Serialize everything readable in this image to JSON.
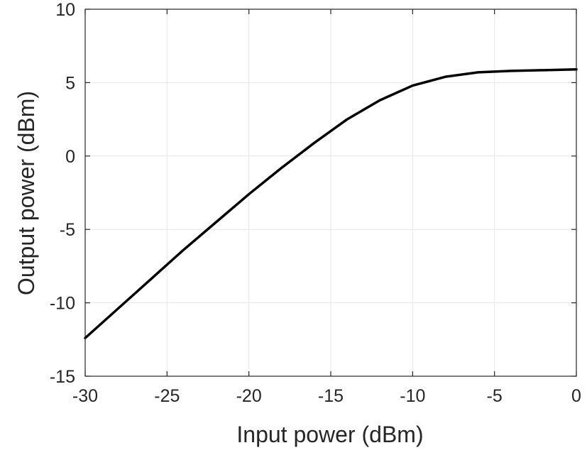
{
  "chart_data": {
    "type": "line",
    "title": "",
    "xlabel": "Input power (dBm)",
    "ylabel": "Output power (dBm)",
    "xlim": [
      -30,
      0
    ],
    "ylim": [
      -15,
      10
    ],
    "xticks": [
      -30,
      -25,
      -20,
      -15,
      -10,
      -5,
      0
    ],
    "yticks": [
      -15,
      -10,
      -5,
      0,
      5,
      10
    ],
    "xtick_labels": [
      "-30",
      "-25",
      "-20",
      "-15",
      "-10",
      "-5",
      "0"
    ],
    "ytick_labels": [
      "-15",
      "-10",
      "-5",
      "0",
      "5",
      "10"
    ],
    "grid": true,
    "legend": "none",
    "line_color": "#000000",
    "grid_color": "#e6e6e6",
    "axis_color": "#262626",
    "series": [
      {
        "x": [
          -30,
          -28,
          -26,
          -24,
          -22,
          -20,
          -18,
          -16,
          -14,
          -12,
          -10,
          -8,
          -6,
          -4,
          -2,
          0
        ],
        "y": [
          -12.4,
          -10.4,
          -8.4,
          -6.4,
          -4.5,
          -2.6,
          -0.8,
          0.9,
          2.5,
          3.8,
          4.8,
          5.4,
          5.7,
          5.8,
          5.85,
          5.9
        ]
      }
    ]
  }
}
